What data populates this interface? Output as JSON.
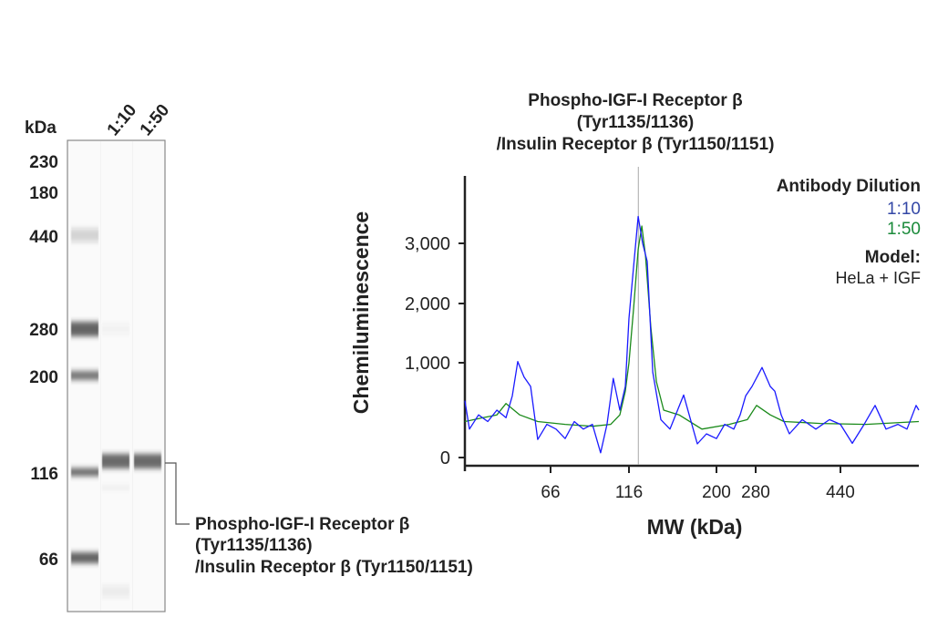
{
  "blot": {
    "unit_label": "kDa",
    "lane_labels": [
      "1:10",
      "1:50"
    ],
    "markers": [
      "230",
      "180",
      "440",
      "280",
      "200",
      "116",
      "66"
    ],
    "annotation": [
      "Phospho-IGF-I Receptor β",
      "(Tyr1135/1136)",
      "/Insulin Receptor β (Tyr1150/1151)"
    ]
  },
  "chart_data": {
    "type": "line",
    "title": [
      "Phospho-IGF-I Receptor β",
      "(Tyr1135/1136)",
      "/Insulin Receptor β (Tyr1150/1151)"
    ],
    "xlabel": "MW (kDa)",
    "ylabel": "Chemiluminescence",
    "x_ticks": [
      66,
      116,
      200,
      280,
      440
    ],
    "x_tick_labels": [
      "66",
      "116",
      "200",
      "280",
      "440"
    ],
    "y_ticks": [
      0,
      1000,
      2000,
      3000
    ],
    "y_tick_labels": [
      "0",
      "1,000",
      "2,000",
      "3,000"
    ],
    "xlim": [
      36,
      667
    ],
    "grid": false,
    "reference_line_kda": 125,
    "legend": {
      "title": "Antibody Dilution",
      "position": "top-right",
      "model_label": "Model:",
      "model_value": "HeLa + IGF"
    },
    "series": [
      {
        "name": "1:10",
        "color": "#1a1aff",
        "legend_color": "#3347a6",
        "x": [
          36,
          37.6,
          40.8,
          44,
          47.2,
          50.4,
          52.6,
          54.5,
          56.7,
          59,
          61.5,
          64.7,
          69.5,
          75.3,
          81.1,
          86.9,
          92.7,
          97.9,
          102,
          106,
          110.2,
          113.7,
          116,
          120.4,
          124.8,
          129.1,
          133.5,
          138.8,
          146.6,
          155.4,
          168.5,
          181.6,
          190.4,
          200,
          216.7,
          235.3,
          248.4,
          259.5,
          272.6,
          292,
          307.5,
          316.1,
          328.2,
          343.7,
          367.8,
          393.6,
          419.4,
          440,
          474.3,
          508.6,
          540.3,
          572,
          606.3,
          632.7,
          659,
          667
        ],
        "y": [
          600,
          300,
          450,
          380,
          500,
          420,
          650,
          1020,
          850,
          750,
          190,
          350,
          300,
          200,
          380,
          300,
          350,
          50,
          350,
          835,
          500,
          750,
          1750,
          2600,
          3450,
          3000,
          2700,
          900,
          400,
          300,
          660,
          144,
          250,
          200,
          350,
          300,
          450,
          650,
          750,
          950,
          750,
          700,
          450,
          250,
          400,
          300,
          400,
          350,
          150,
          350,
          550,
          300,
          350,
          300,
          550,
          500
        ]
      },
      {
        "name": "1:50",
        "color": "#1a8a1a",
        "legend_color": "#1a8a3a",
        "x": [
          36,
          42.4,
          47.2,
          50.4,
          55.2,
          61.5,
          75.3,
          92.7,
          104.4,
          110.2,
          113.7,
          116,
          120.4,
          124.8,
          128.3,
          131.8,
          137,
          142.3,
          149.3,
          164.1,
          186,
          226,
          263,
          281.7,
          307.5,
          333.4,
          402.2,
          513.9,
          667
        ],
        "y": [
          380,
          420,
          450,
          570,
          450,
          380,
          350,
          330,
          350,
          450,
          700,
          1000,
          1900,
          2900,
          3290,
          2800,
          1600,
          800,
          500,
          450,
          300,
          350,
          400,
          550,
          450,
          380,
          360,
          350,
          380
        ]
      }
    ]
  }
}
